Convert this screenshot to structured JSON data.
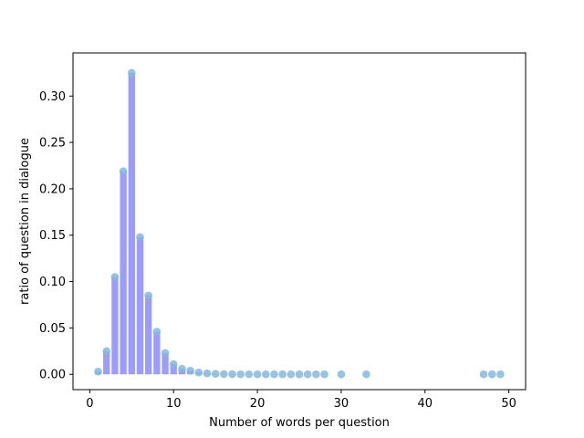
{
  "chart_data": {
    "type": "bar",
    "xlabel": "Number of words per question",
    "ylabel": "ratio of question in dialogue",
    "xlim": [
      -2,
      52
    ],
    "ylim": [
      -0.0165,
      0.3465
    ],
    "xticks": [
      0,
      10,
      20,
      30,
      40,
      50
    ],
    "yticks": [
      0.0,
      0.05,
      0.1,
      0.15,
      0.2,
      0.25,
      0.3
    ],
    "ytick_labels": [
      "0.00",
      "0.05",
      "0.10",
      "0.15",
      "0.20",
      "0.25",
      "0.30"
    ],
    "grid": false,
    "bar_color": "#9c9cfc",
    "point_color": "#86b7dd",
    "points": [
      {
        "x": 1,
        "y": 0.003
      },
      {
        "x": 2,
        "y": 0.025
      },
      {
        "x": 3,
        "y": 0.105
      },
      {
        "x": 4,
        "y": 0.219
      },
      {
        "x": 5,
        "y": 0.325
      },
      {
        "x": 6,
        "y": 0.148
      },
      {
        "x": 7,
        "y": 0.085
      },
      {
        "x": 8,
        "y": 0.046
      },
      {
        "x": 9,
        "y": 0.023
      },
      {
        "x": 10,
        "y": 0.011
      },
      {
        "x": 11,
        "y": 0.006
      },
      {
        "x": 12,
        "y": 0.004
      },
      {
        "x": 13,
        "y": 0.002
      },
      {
        "x": 14,
        "y": 0.001
      },
      {
        "x": 15,
        "y": 0.0005
      },
      {
        "x": 16,
        "y": 0.0003
      },
      {
        "x": 17,
        "y": 0.0002
      },
      {
        "x": 18,
        "y": 0.0001
      },
      {
        "x": 19,
        "y": 0.0001
      },
      {
        "x": 20,
        "y": 0.0
      },
      {
        "x": 21,
        "y": 0.0
      },
      {
        "x": 22,
        "y": 0.0
      },
      {
        "x": 23,
        "y": 0.0
      },
      {
        "x": 24,
        "y": 0.0
      },
      {
        "x": 25,
        "y": 0.0
      },
      {
        "x": 26,
        "y": 0.0
      },
      {
        "x": 27,
        "y": 0.0
      },
      {
        "x": 28,
        "y": 0.0
      },
      {
        "x": 30,
        "y": 0.0
      },
      {
        "x": 33,
        "y": 0.0
      },
      {
        "x": 47,
        "y": 0.0
      },
      {
        "x": 48,
        "y": 0.0
      },
      {
        "x": 49,
        "y": 0.0
      }
    ]
  }
}
